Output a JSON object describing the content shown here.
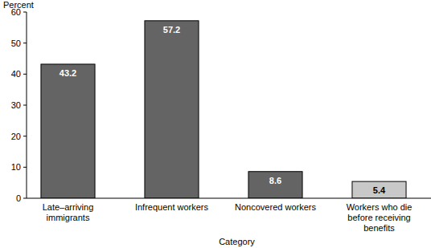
{
  "chart_data": {
    "type": "bar",
    "y_label": "Percent",
    "x_label": "Category",
    "categories": [
      "Late–arriving immigrants",
      "Infrequent workers",
      "Noncovered workers",
      "Workers who die before receiving benefits"
    ],
    "values": [
      43.2,
      57.2,
      8.6,
      5.4
    ],
    "colors": [
      "#646464",
      "#646464",
      "#646464",
      "#c8c8c8"
    ],
    "ylim": [
      0,
      60
    ],
    "yticks": [
      0,
      10,
      20,
      30,
      40,
      50,
      60
    ],
    "grid": false,
    "data_labels": true
  }
}
